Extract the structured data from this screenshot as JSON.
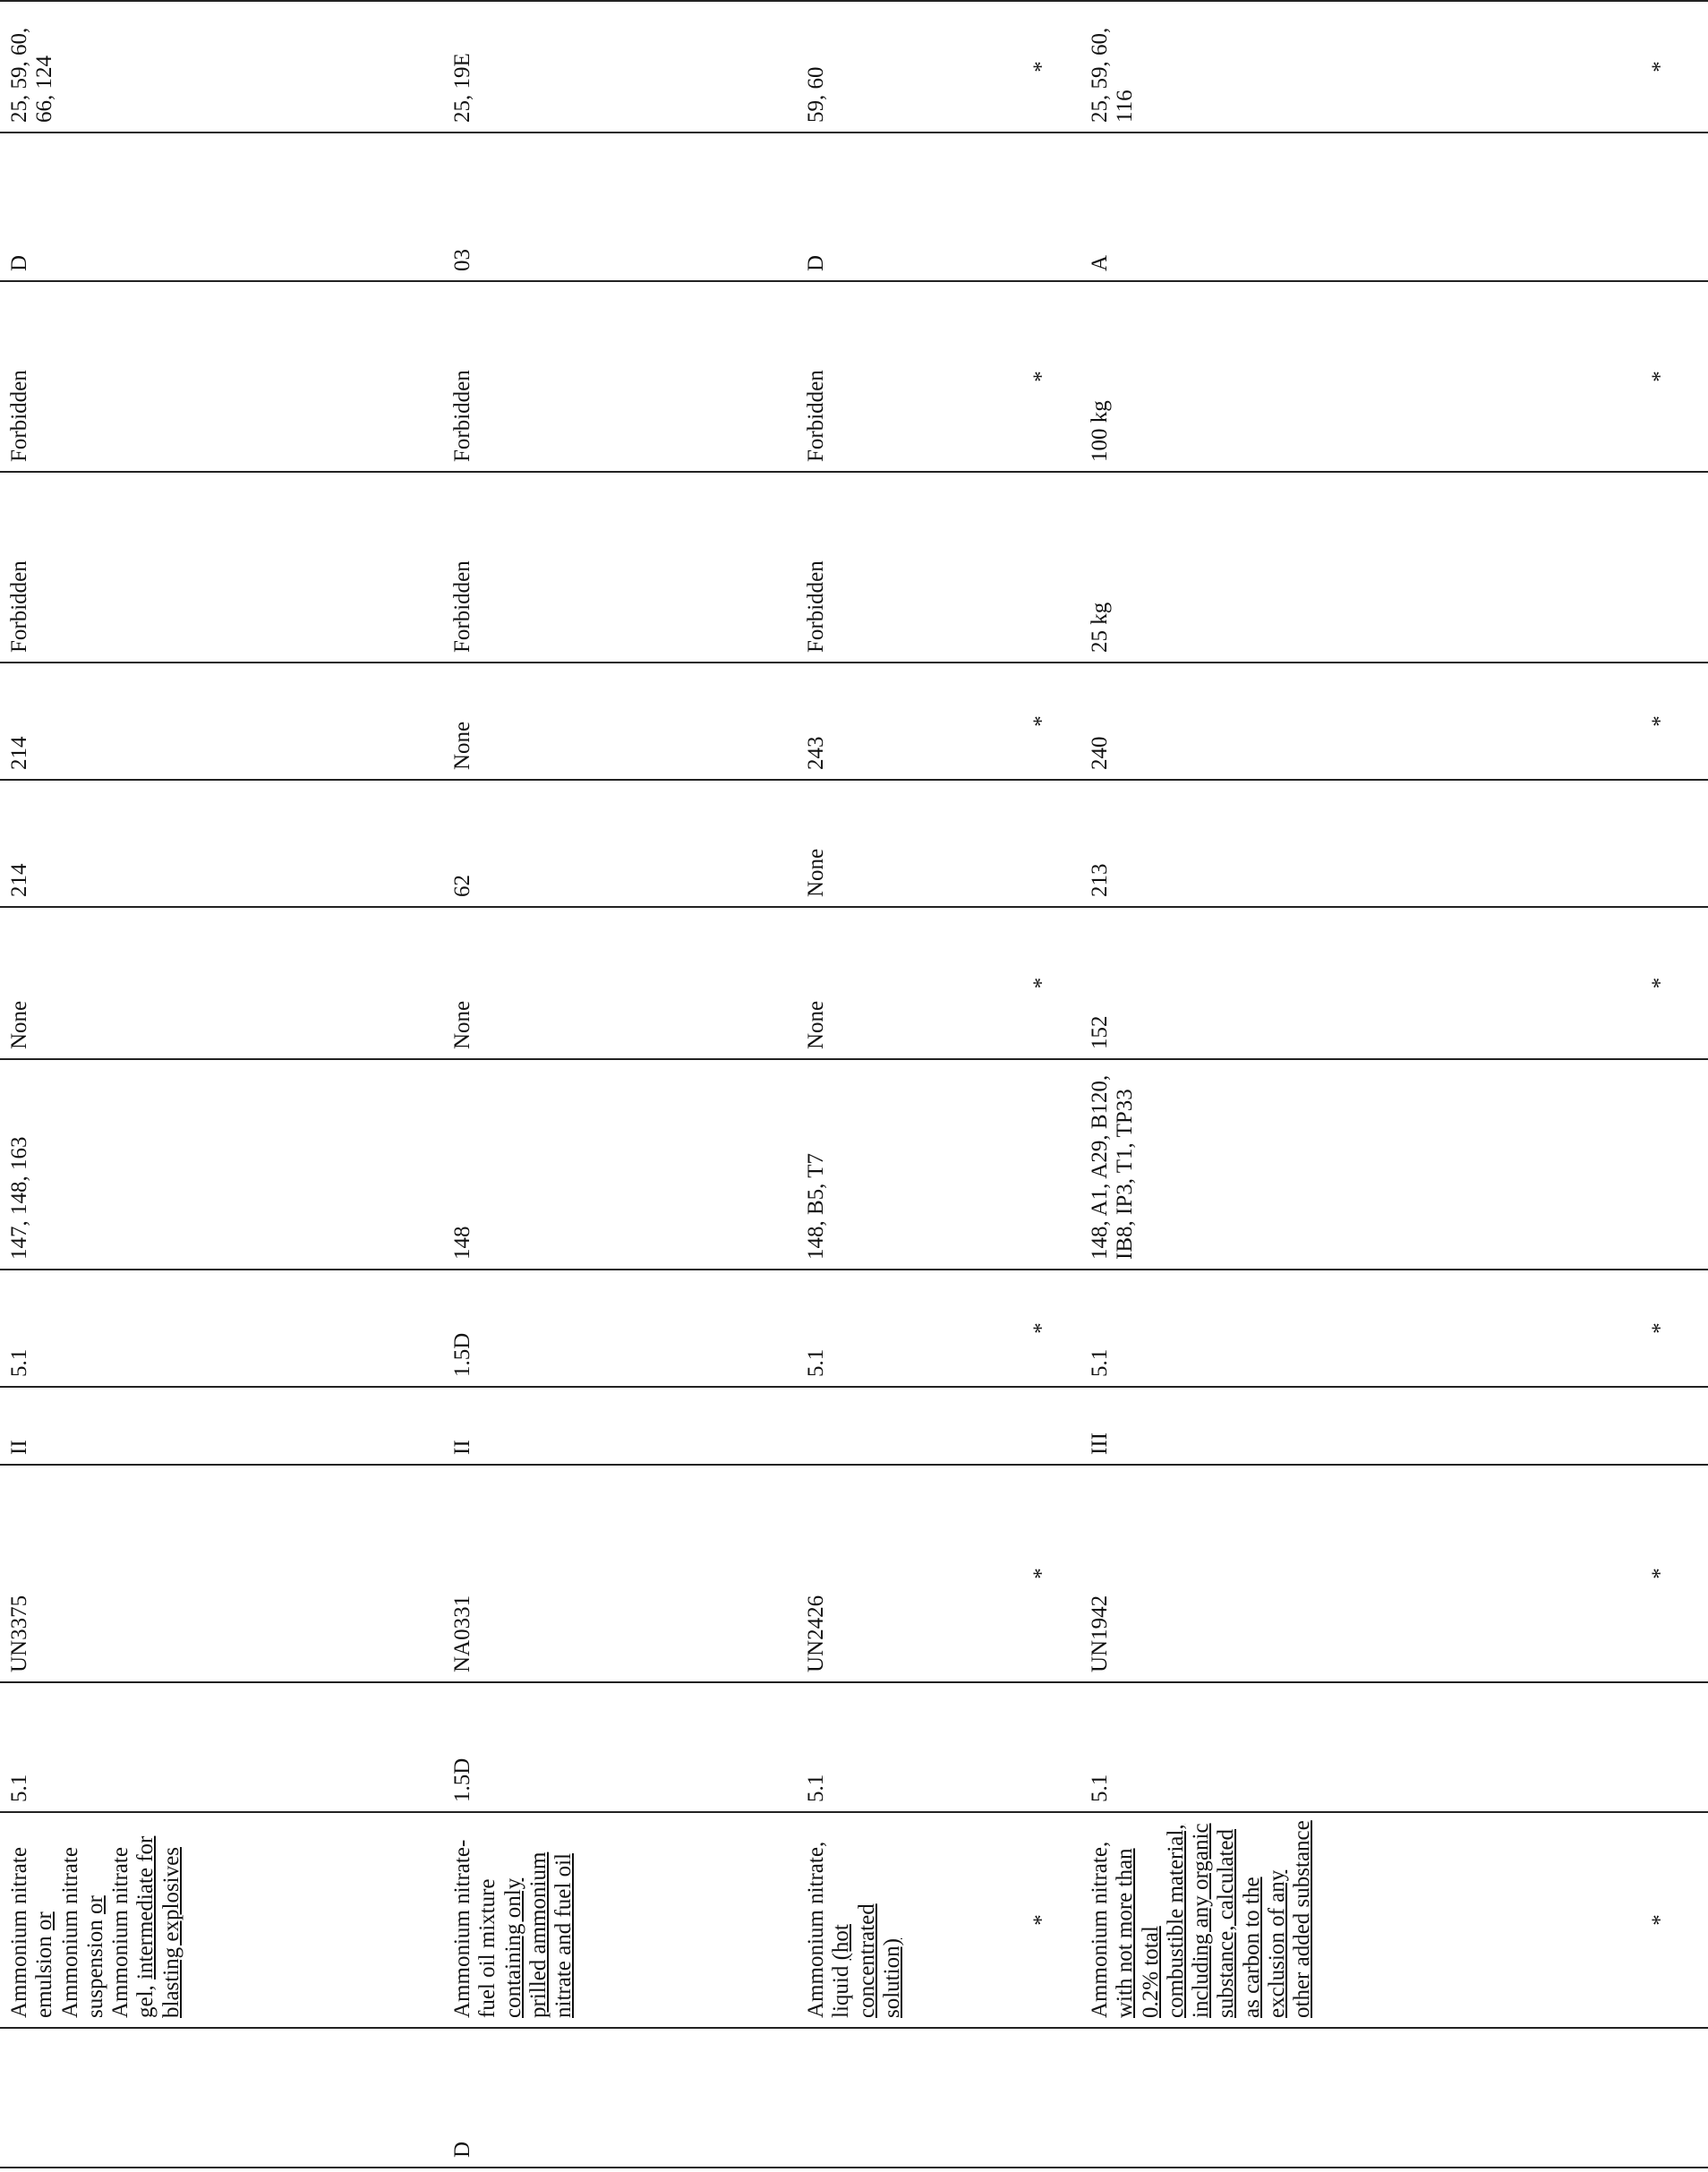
{
  "table": {
    "rows": [
      [
        null,
        [
          {
            "text": "Ammonium nitrate emulsion ",
            "underline": false
          },
          {
            "text": "or",
            "underline": true
          },
          {
            "text": " Ammonium nitrate suspension ",
            "underline": false
          },
          {
            "text": "or",
            "underline": true
          },
          {
            "text": " Ammonium nitrate gel, ",
            "underline": false
          },
          {
            "text": "intermediate for blasting explosives",
            "underline": true
          }
        ],
        "5.1",
        "UN3375",
        "II",
        "5.1",
        "147, 148, 163",
        "None",
        "214",
        "214",
        "Forbidden",
        "Forbidden",
        "D",
        "25, 59, 60, 66, 124"
      ],
      [
        "D",
        [
          {
            "text": "Ammonium nitrate-fuel oil mixture ",
            "underline": false
          },
          {
            "text": "containing only prilled ammonium nitrate and fuel oil",
            "underline": true
          }
        ],
        "1.5D",
        "NA0331",
        "II",
        "1.5D",
        "148",
        "None",
        "62",
        "None",
        "Forbidden",
        "Forbidden",
        "03",
        "25, 19E"
      ],
      [
        null,
        [
          {
            "text": "Ammonium nitrate, liquid ",
            "underline": false
          },
          {
            "text": "(hot concentrated solution)",
            "underline": true
          }
        ],
        "5.1",
        "UN2426",
        null,
        "5.1",
        "148, B5, T7",
        "None",
        "None",
        "243",
        "Forbidden",
        "Forbidden",
        "D",
        "59, 60"
      ],
      [
        null,
        "*",
        null,
        "*",
        null,
        "*",
        null,
        "*",
        null,
        "*",
        null,
        "*",
        null,
        "*"
      ],
      [
        null,
        [
          {
            "text": "Ammonium nitrate, ",
            "underline": false
          },
          {
            "text": "with not more than 0.2% total combustible material, including any organic substance, calculated as carbon to the exclusion of any other added substance",
            "underline": true
          }
        ],
        "5.1",
        "UN1942",
        "III",
        "5.1",
        "148, A1, A29, B120, IB8, IP3, T1, TP33",
        "152",
        "213",
        "240",
        "25 kg",
        "100 kg",
        "A",
        "25, 59, 60, 116"
      ],
      [
        null,
        "*",
        null,
        "*",
        null,
        "*",
        null,
        "*",
        null,
        "*",
        null,
        "*",
        null,
        "*"
      ]
    ]
  }
}
